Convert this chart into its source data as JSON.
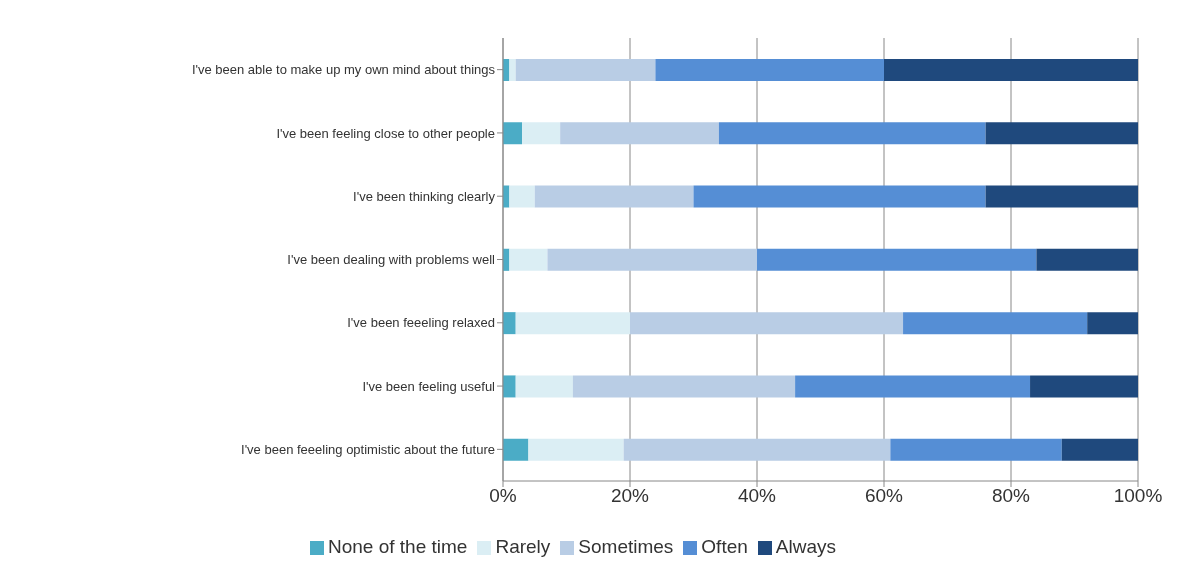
{
  "chart_data": {
    "type": "bar",
    "orientation": "horizontal",
    "stacked": true,
    "categories": [
      "I've been able to make up my own mind about things",
      "I've been feeling close to other people",
      "I've been thinking clearly",
      "I've been dealing with problems well",
      "I've been feeeling relaxed",
      "I've been feeling useful",
      "I've been feeeling optimistic about the future"
    ],
    "series": [
      {
        "name": "None of the time",
        "color": "#4bacc6",
        "values": [
          1,
          3,
          1,
          1,
          2,
          2,
          4
        ]
      },
      {
        "name": "Rarely",
        "color": "#dbeef4",
        "values": [
          1,
          6,
          4,
          6,
          18,
          9,
          15
        ]
      },
      {
        "name": "Sometimes",
        "color": "#b9cde5",
        "values": [
          22,
          25,
          25,
          33,
          43,
          35,
          42
        ]
      },
      {
        "name": "Often",
        "color": "#558ed5",
        "values": [
          36,
          42,
          46,
          44,
          29,
          37,
          27
        ]
      },
      {
        "name": "Always",
        "color": "#1f497d",
        "values": [
          40,
          24,
          24,
          16,
          8,
          17,
          12
        ]
      }
    ],
    "xlim": [
      0,
      100
    ],
    "xticks": [
      {
        "value": 0,
        "label": "0%"
      },
      {
        "value": 20,
        "label": "20%"
      },
      {
        "value": 40,
        "label": "40%"
      },
      {
        "value": 60,
        "label": "60%"
      },
      {
        "value": 80,
        "label": "80%"
      },
      {
        "value": 100,
        "label": "100%"
      }
    ],
    "grid": "x",
    "legend": "bottom"
  }
}
